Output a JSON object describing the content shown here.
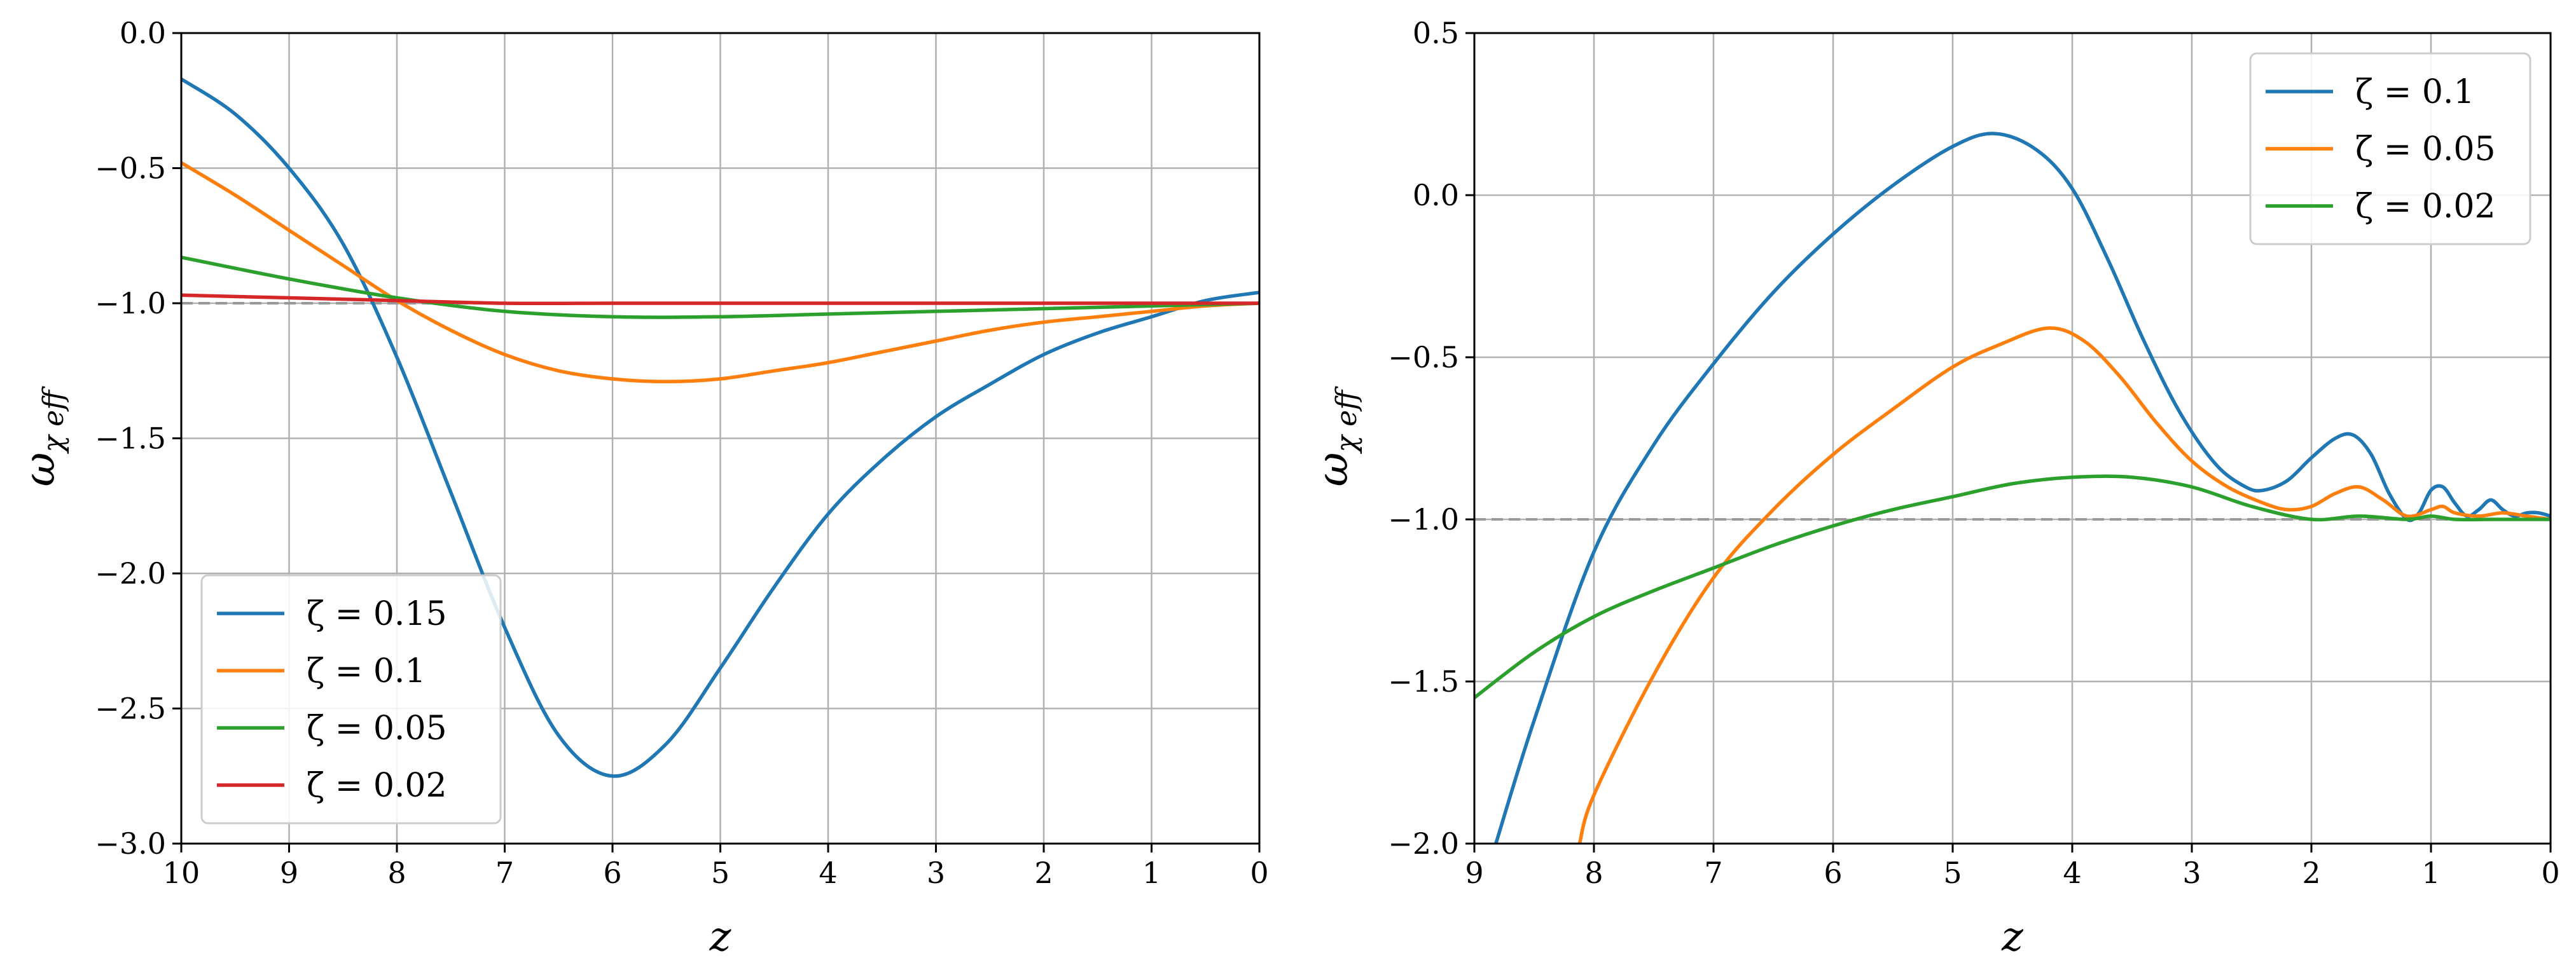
{
  "chart_data": [
    {
      "type": "line",
      "xlabel": "z",
      "ylabel": "ω",
      "ylabel_sub": "χ eff",
      "xlim": [
        10,
        0
      ],
      "ylim": [
        -3.0,
        0.0
      ],
      "x_reversed": true,
      "grid": true,
      "legend_position": "lower-left",
      "xticks": [
        "10",
        "9",
        "8",
        "7",
        "6",
        "5",
        "4",
        "3",
        "2",
        "1",
        "0"
      ],
      "xtick_values": [
        10,
        9,
        8,
        7,
        6,
        5,
        4,
        3,
        2,
        1,
        0
      ],
      "yticks": [
        "0.0",
        "−0.5",
        "−1.0",
        "−1.5",
        "−2.0",
        "−2.5",
        "−3.0"
      ],
      "ytick_values": [
        0.0,
        -0.5,
        -1.0,
        -1.5,
        -2.0,
        -2.5,
        -3.0
      ],
      "reference_line": {
        "y": -1.0,
        "style": "dashed",
        "color": "#999999"
      },
      "series": [
        {
          "name": "ζ = 0.15",
          "color": "#1f77b4",
          "x": [
            10,
            9.5,
            9,
            8.5,
            8,
            7.5,
            7,
            6.5,
            6,
            5.5,
            5,
            4.5,
            4,
            3.5,
            3,
            2.5,
            2,
            1.5,
            1,
            0.5,
            0
          ],
          "y": [
            -0.17,
            -0.3,
            -0.5,
            -0.78,
            -1.2,
            -1.7,
            -2.2,
            -2.6,
            -2.75,
            -2.63,
            -2.35,
            -2.05,
            -1.78,
            -1.58,
            -1.42,
            -1.3,
            -1.19,
            -1.11,
            -1.05,
            -0.99,
            -0.96
          ]
        },
        {
          "name": "ζ = 0.1",
          "color": "#ff7f0e",
          "x": [
            10,
            9.5,
            9,
            8.5,
            8,
            7.5,
            7,
            6.5,
            6,
            5.5,
            5,
            4.5,
            4,
            3.5,
            3,
            2.5,
            2,
            1.5,
            1,
            0.5,
            0
          ],
          "y": [
            -0.48,
            -0.6,
            -0.73,
            -0.86,
            -0.99,
            -1.1,
            -1.19,
            -1.25,
            -1.28,
            -1.29,
            -1.28,
            -1.25,
            -1.22,
            -1.18,
            -1.14,
            -1.1,
            -1.07,
            -1.05,
            -1.03,
            -1.01,
            -1.0
          ]
        },
        {
          "name": "ζ = 0.05",
          "color": "#2ca02c",
          "x": [
            10,
            9,
            8,
            7,
            6,
            5,
            4,
            3,
            2,
            1,
            0
          ],
          "y": [
            -0.83,
            -0.91,
            -0.98,
            -1.03,
            -1.05,
            -1.05,
            -1.04,
            -1.03,
            -1.02,
            -1.01,
            -1.0
          ]
        },
        {
          "name": "ζ = 0.02",
          "color": "#d62728",
          "x": [
            10,
            9,
            8,
            7,
            6,
            5,
            4,
            3,
            2,
            1,
            0
          ],
          "y": [
            -0.97,
            -0.98,
            -0.99,
            -1.0,
            -1.0,
            -1.0,
            -1.0,
            -1.0,
            -1.0,
            -1.0,
            -1.0
          ]
        }
      ]
    },
    {
      "type": "line",
      "xlabel": "z",
      "ylabel": "ω",
      "ylabel_sub": "χ eff",
      "xlim": [
        9,
        0
      ],
      "ylim": [
        -2.0,
        0.5
      ],
      "x_reversed": true,
      "grid": true,
      "legend_position": "upper-right",
      "xticks": [
        "9",
        "8",
        "7",
        "6",
        "5",
        "4",
        "3",
        "2",
        "1",
        "0"
      ],
      "xtick_values": [
        9,
        8,
        7,
        6,
        5,
        4,
        3,
        2,
        1,
        0
      ],
      "yticks": [
        "0.5",
        "0.0",
        "−0.5",
        "−1.0",
        "−1.5",
        "−2.0"
      ],
      "ytick_values": [
        0.5,
        0.0,
        -0.5,
        -1.0,
        -1.5,
        -2.0
      ],
      "reference_line": {
        "y": -1.0,
        "style": "dashed",
        "color": "#999999"
      },
      "series": [
        {
          "name": "ζ = 0.1",
          "color": "#1f77b4",
          "x": [
            8.82,
            8.5,
            8,
            7.5,
            7,
            6.5,
            6,
            5.5,
            5,
            4.65,
            4.3,
            4,
            3.7,
            3.4,
            3.1,
            2.8,
            2.55,
            2.4,
            2.2,
            2.0,
            1.8,
            1.65,
            1.5,
            1.35,
            1.2,
            1.1,
            1.0,
            0.9,
            0.8,
            0.7,
            0.6,
            0.5,
            0.4,
            0.3,
            0.2,
            0.1,
            0
          ],
          "y": [
            -2.0,
            -1.62,
            -1.1,
            -0.77,
            -0.52,
            -0.3,
            -0.12,
            0.03,
            0.15,
            0.19,
            0.14,
            0.02,
            -0.2,
            -0.45,
            -0.67,
            -0.83,
            -0.9,
            -0.91,
            -0.88,
            -0.81,
            -0.75,
            -0.74,
            -0.8,
            -0.92,
            -1.0,
            -0.98,
            -0.91,
            -0.9,
            -0.95,
            -0.99,
            -0.97,
            -0.94,
            -0.97,
            -0.99,
            -0.98,
            -0.98,
            -0.99
          ]
        },
        {
          "name": "ζ = 0.05",
          "color": "#ff7f0e",
          "x": [
            8.12,
            8,
            7.5,
            7,
            6.5,
            6,
            5.5,
            5,
            4.6,
            4.2,
            3.9,
            3.6,
            3.3,
            3.0,
            2.7,
            2.4,
            2.2,
            2.0,
            1.8,
            1.6,
            1.4,
            1.2,
            1.0,
            0.9,
            0.8,
            0.6,
            0.4,
            0.2,
            0
          ],
          "y": [
            -2.0,
            -1.85,
            -1.48,
            -1.18,
            -0.97,
            -0.8,
            -0.66,
            -0.53,
            -0.46,
            -0.41,
            -0.45,
            -0.56,
            -0.7,
            -0.82,
            -0.9,
            -0.95,
            -0.97,
            -0.96,
            -0.92,
            -0.9,
            -0.94,
            -0.99,
            -0.97,
            -0.96,
            -0.98,
            -0.99,
            -0.98,
            -0.99,
            -1.0
          ]
        },
        {
          "name": "ζ = 0.02",
          "color": "#2ca02c",
          "x": [
            9,
            8.5,
            8,
            7.5,
            7,
            6.5,
            6,
            5.5,
            5,
            4.5,
            4,
            3.5,
            3,
            2.5,
            2,
            1.6,
            1.2,
            1.0,
            0.8,
            0.5,
            0.2,
            0
          ],
          "y": [
            -1.55,
            -1.41,
            -1.3,
            -1.22,
            -1.15,
            -1.08,
            -1.02,
            -0.97,
            -0.93,
            -0.89,
            -0.87,
            -0.87,
            -0.9,
            -0.96,
            -1.0,
            -0.99,
            -1.0,
            -0.99,
            -1.0,
            -1.0,
            -1.0,
            -1.0
          ]
        }
      ]
    }
  ]
}
